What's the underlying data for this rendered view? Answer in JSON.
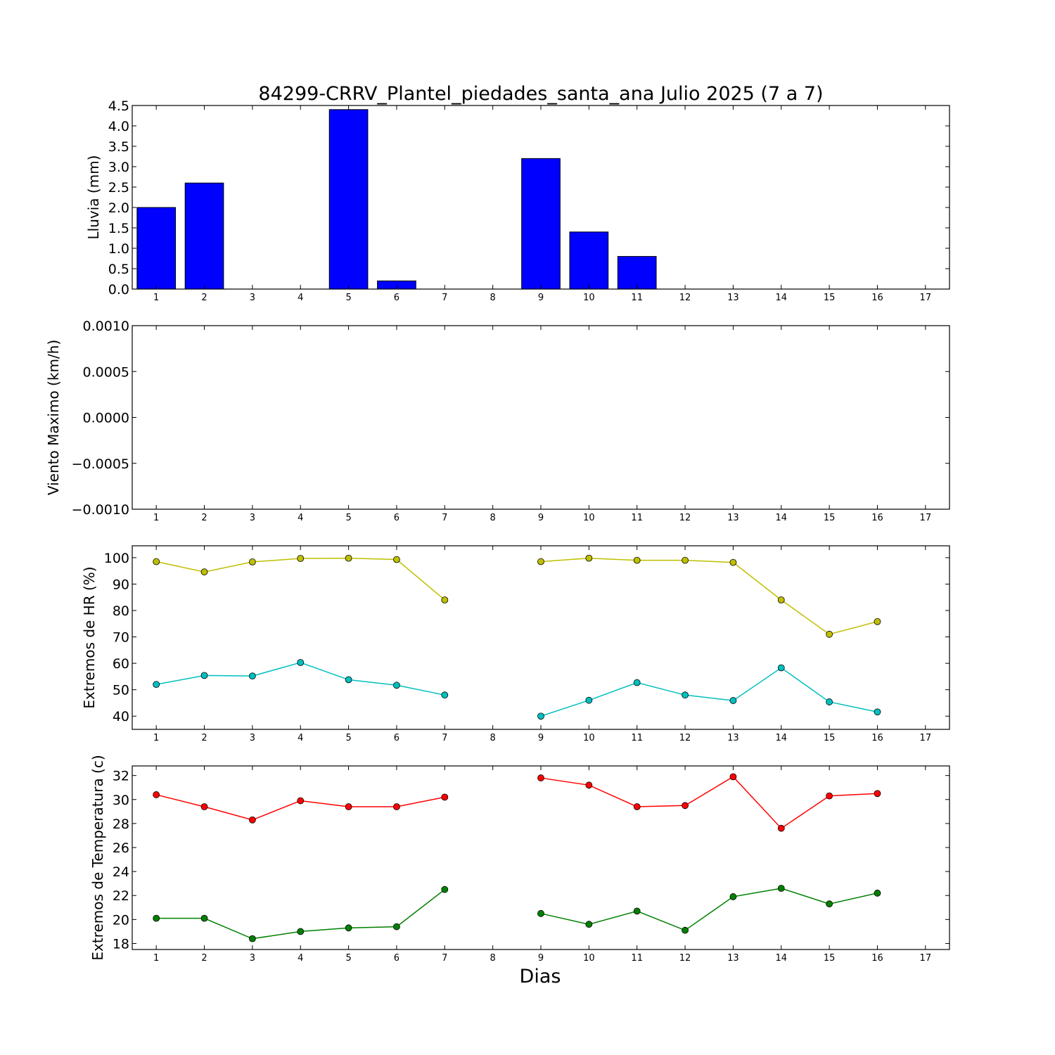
{
  "figure": {
    "title": "84299-CRRV_Plantel_piedades_santa_ana Julio 2025  (7 a 7)",
    "xlabel": "Dias"
  },
  "chart_data": [
    {
      "type": "bar",
      "ylabel": "Lluvia (mm)",
      "categories": [
        1,
        2,
        3,
        4,
        5,
        6,
        7,
        8,
        9,
        10,
        11,
        12,
        13,
        14,
        15,
        16,
        17
      ],
      "values": [
        2.0,
        2.6,
        0.0,
        0.0,
        4.4,
        0.2,
        0.0,
        null,
        3.2,
        1.4,
        0.8,
        0.0,
        0.0,
        0.0,
        0.0,
        0.0,
        0.0
      ],
      "ylim": [
        0,
        4.5
      ],
      "yticks": [
        "0.0",
        "0.5",
        "1.0",
        "1.5",
        "2.0",
        "2.5",
        "3.0",
        "3.5",
        "4.0",
        "4.5"
      ],
      "ytick_values": [
        0,
        0.5,
        1.0,
        1.5,
        2.0,
        2.5,
        3.0,
        3.5,
        4.0,
        4.5
      ],
      "color": "#0000ff"
    },
    {
      "type": "line",
      "ylabel": "Viento Maximo (km/h)",
      "categories": [
        1,
        2,
        3,
        4,
        5,
        6,
        7,
        8,
        9,
        10,
        11,
        12,
        13,
        14,
        15,
        16,
        17
      ],
      "series": [],
      "ylim": [
        -0.001,
        0.001
      ],
      "yticks": [
        "−0.0010",
        "−0.0005",
        "0.0000",
        "0.0005",
        "0.0010"
      ],
      "ytick_values": [
        -0.001,
        -0.0005,
        0,
        0.0005,
        0.001
      ]
    },
    {
      "type": "line",
      "ylabel": "Extremos de HR (%)",
      "categories": [
        1,
        2,
        3,
        4,
        5,
        6,
        7,
        8,
        9,
        10,
        11,
        12,
        13,
        14,
        15,
        16,
        17
      ],
      "ylim": [
        35,
        104.5
      ],
      "yticks": [
        "40",
        "50",
        "60",
        "70",
        "80",
        "90",
        "100"
      ],
      "ytick_values": [
        40,
        50,
        60,
        70,
        80,
        90,
        100
      ],
      "series": [
        {
          "color": "#bfbf00",
          "values": [
            98.5,
            94.6,
            98.4,
            99.7,
            99.8,
            99.3,
            84.0,
            null,
            98.5,
            99.8,
            99.0,
            99.0,
            98.2,
            84.0,
            71.0,
            75.8,
            null
          ]
        },
        {
          "color": "#00bfbf",
          "values": [
            52.0,
            55.4,
            55.2,
            60.3,
            53.8,
            51.7,
            48.0,
            null,
            40.0,
            46.0,
            52.7,
            48.0,
            45.9,
            58.3,
            45.4,
            41.6,
            null
          ]
        }
      ]
    },
    {
      "type": "line",
      "ylabel": "Extremos de Temperatura (c)",
      "categories": [
        1,
        2,
        3,
        4,
        5,
        6,
        7,
        8,
        9,
        10,
        11,
        12,
        13,
        14,
        15,
        16,
        17
      ],
      "ylim": [
        17.5,
        32.8
      ],
      "yticks": [
        "18",
        "20",
        "22",
        "24",
        "26",
        "28",
        "30",
        "32"
      ],
      "ytick_values": [
        18,
        20,
        22,
        24,
        26,
        28,
        30,
        32
      ],
      "series": [
        {
          "color": "#ff0000",
          "values": [
            30.4,
            29.4,
            28.3,
            29.9,
            29.4,
            29.4,
            30.2,
            null,
            31.8,
            31.2,
            29.4,
            29.5,
            31.9,
            27.6,
            30.3,
            30.5,
            null
          ]
        },
        {
          "color": "#008000",
          "values": [
            20.1,
            20.1,
            18.4,
            19.0,
            19.3,
            19.4,
            22.5,
            null,
            20.5,
            19.6,
            20.7,
            19.1,
            21.9,
            22.6,
            21.3,
            22.2,
            null
          ]
        }
      ]
    }
  ]
}
